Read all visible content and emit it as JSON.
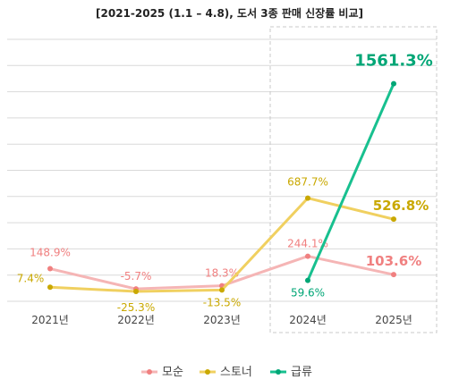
{
  "chart_data": {
    "type": "line",
    "title": "[2021-2025 (1.1 – 4.8), 도서 3종 판매 신장률 비교]",
    "categories": [
      "2021년",
      "2022년",
      "2023년",
      "2024년",
      "2025년"
    ],
    "series": [
      {
        "name": "모순",
        "color": "#f08080",
        "line_color": "#f5b5b5",
        "values": [
          148.9,
          -5.7,
          18.3,
          244.1,
          103.6
        ],
        "labels": [
          "148.9%",
          "-5.7%",
          "18.3%",
          "244.1%",
          "103.6%"
        ]
      },
      {
        "name": "스토너",
        "color": "#c9a800",
        "line_color": "#f0d060",
        "values": [
          7.4,
          -25.3,
          -13.5,
          687.7,
          526.8
        ],
        "labels": [
          "7.4%",
          "-25.3%",
          "-13.5%",
          "687.7%",
          "526.8%"
        ]
      },
      {
        "name": "급류",
        "color": "#00a676",
        "line_color": "#18c08f",
        "values": [
          null,
          null,
          null,
          59.6,
          1561.3
        ],
        "labels": [
          "",
          "",
          "",
          "59.6%",
          "1561.3%"
        ]
      }
    ],
    "ylim": [
      -100,
      1900
    ],
    "grid": true,
    "legend": "bottom",
    "highlight_categories": [
      "2024년",
      "2025년"
    ]
  }
}
